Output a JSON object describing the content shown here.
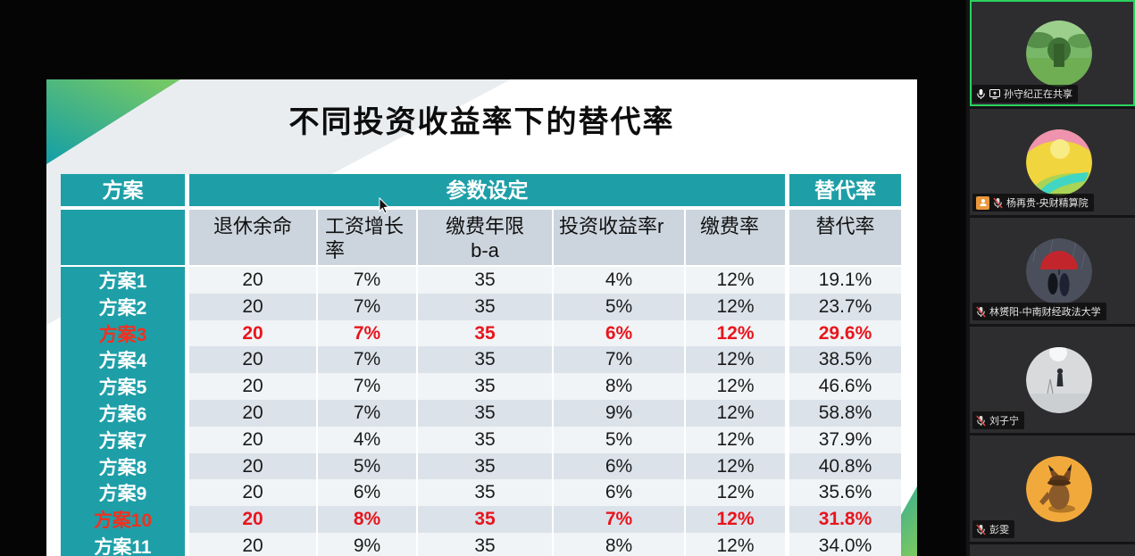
{
  "slide": {
    "title": "不同投资收益率下的替代率",
    "table": {
      "header": {
        "plan": "方案",
        "params": "参数设定",
        "replacement": "替代率"
      },
      "subheader": [
        {
          "line1": "退休余命",
          "line2": ""
        },
        {
          "line1": "工资增长",
          "line2": "率"
        },
        {
          "line1": "缴费年限",
          "line2": "b-a"
        },
        {
          "line1": "投资收益率r",
          "line2": ""
        },
        {
          "line1": "缴费率",
          "line2": ""
        },
        {
          "line1": "替代率",
          "line2": ""
        }
      ],
      "rows": [
        {
          "plan": "方案1",
          "values": [
            "20",
            "7%",
            "35",
            "4%",
            "12%",
            "19.1%"
          ],
          "highlight": false
        },
        {
          "plan": "方案2",
          "values": [
            "20",
            "7%",
            "35",
            "5%",
            "12%",
            "23.7%"
          ],
          "highlight": false
        },
        {
          "plan": "方案3",
          "values": [
            "20",
            "7%",
            "35",
            "6%",
            "12%",
            "29.6%"
          ],
          "highlight": true
        },
        {
          "plan": "方案4",
          "values": [
            "20",
            "7%",
            "35",
            "7%",
            "12%",
            "38.5%"
          ],
          "highlight": false
        },
        {
          "plan": "方案5",
          "values": [
            "20",
            "7%",
            "35",
            "8%",
            "12%",
            "46.6%"
          ],
          "highlight": false
        },
        {
          "plan": "方案6",
          "values": [
            "20",
            "7%",
            "35",
            "9%",
            "12%",
            "58.8%"
          ],
          "highlight": false
        },
        {
          "plan": "方案7",
          "values": [
            "20",
            "4%",
            "35",
            "5%",
            "12%",
            "37.9%"
          ],
          "highlight": false
        },
        {
          "plan": "方案8",
          "values": [
            "20",
            "5%",
            "35",
            "6%",
            "12%",
            "40.8%"
          ],
          "highlight": false
        },
        {
          "plan": "方案9",
          "values": [
            "20",
            "6%",
            "35",
            "6%",
            "12%",
            "35.6%"
          ],
          "highlight": false
        },
        {
          "plan": "方案10",
          "values": [
            "20",
            "8%",
            "35",
            "7%",
            "12%",
            "31.8%"
          ],
          "highlight": true
        },
        {
          "plan": "方案11",
          "values": [
            "20",
            "9%",
            "35",
            "8%",
            "12%",
            "34.0%"
          ],
          "highlight": false
        }
      ]
    }
  },
  "participants": [
    {
      "name": "孙守纪正在共享",
      "mic": "on",
      "sharing": true,
      "active": true,
      "badge": "",
      "avatar": "green-landscape"
    },
    {
      "name": "杨再贵-央财精算院",
      "mic": "muted",
      "sharing": false,
      "active": false,
      "badge": "person",
      "avatar": "sunset-art"
    },
    {
      "name": "林赟阳-中南财经政法大学",
      "mic": "muted",
      "sharing": false,
      "active": false,
      "badge": "",
      "avatar": "umbrella-couple"
    },
    {
      "name": "刘子宁",
      "mic": "muted",
      "sharing": false,
      "active": false,
      "badge": "",
      "avatar": "person-photo"
    },
    {
      "name": "彭雯",
      "mic": "muted",
      "sharing": false,
      "active": false,
      "badge": "",
      "avatar": "detective-pikachu"
    }
  ],
  "colors": {
    "table_teal": "#1e9fa8",
    "row_light": "#f1f4f6",
    "row_dark": "#dbe2ea",
    "subheader_bg": "#ccd5dd",
    "highlight_red": "#e8151d",
    "active_speaker_green": "#2bd25f",
    "person_badge_orange": "#e8973a",
    "tile_bg": "#2d2d30"
  }
}
